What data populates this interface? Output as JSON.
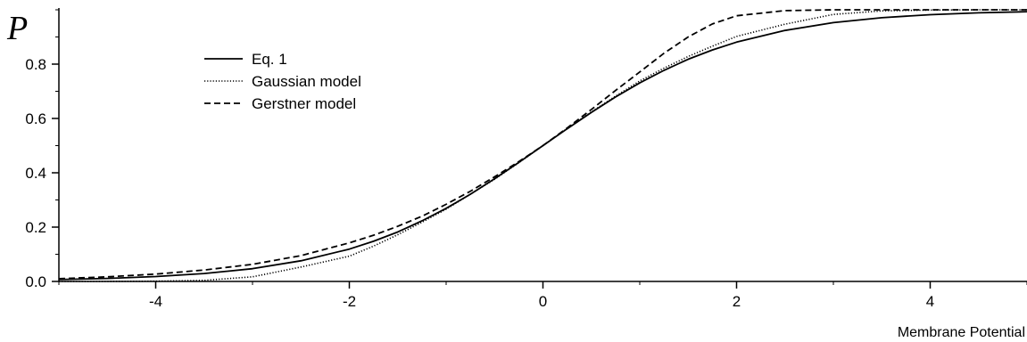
{
  "chart_data": {
    "type": "line",
    "title": "",
    "xlabel": "Membrane Potential",
    "ylabel": "P",
    "xlim": [
      -5,
      5
    ],
    "ylim": [
      0,
      1
    ],
    "xticks": [
      -4,
      -2,
      0,
      2,
      4
    ],
    "xtick_labels": [
      "-4",
      "-2",
      "0",
      "2",
      "4"
    ],
    "yticks": [
      0,
      0.2,
      0.4,
      0.6,
      0.8
    ],
    "ytick_labels": [
      "0.0",
      "0.2",
      "0.4",
      "0.6",
      "0.8"
    ],
    "grid": false,
    "legend_position": "top-left",
    "x": [
      -5,
      -4.5,
      -4,
      -3.5,
      -3,
      -2.5,
      -2,
      -1.75,
      -1.5,
      -1.25,
      -1,
      -0.75,
      -0.5,
      -0.25,
      0,
      0.25,
      0.5,
      0.75,
      1,
      1.25,
      1.5,
      1.75,
      2,
      2.5,
      3,
      3.5,
      4,
      4.5,
      5
    ],
    "series": [
      {
        "name": "Eq. 1",
        "style": "solid",
        "values": [
          0.007,
          0.011,
          0.018,
          0.029,
          0.047,
          0.076,
          0.119,
          0.148,
          0.182,
          0.223,
          0.269,
          0.321,
          0.378,
          0.438,
          0.5,
          0.562,
          0.622,
          0.679,
          0.731,
          0.777,
          0.818,
          0.852,
          0.881,
          0.924,
          0.953,
          0.971,
          0.982,
          0.989,
          0.993
        ]
      },
      {
        "name": "Gaussian model",
        "style": "dotted",
        "values": [
          0.0,
          0.0,
          0.001,
          0.004,
          0.017,
          0.053,
          0.093,
          0.13,
          0.172,
          0.218,
          0.266,
          0.321,
          0.376,
          0.437,
          0.5,
          0.563,
          0.624,
          0.682,
          0.738,
          0.785,
          0.828,
          0.866,
          0.902,
          0.947,
          0.983,
          0.996,
          0.999,
          1.0,
          1.0
        ]
      },
      {
        "name": "Gerstner model",
        "style": "dashed",
        "values": [
          0.01,
          0.017,
          0.027,
          0.042,
          0.063,
          0.095,
          0.142,
          0.17,
          0.203,
          0.24,
          0.284,
          0.332,
          0.385,
          0.441,
          0.5,
          0.565,
          0.633,
          0.703,
          0.771,
          0.84,
          0.9,
          0.948,
          0.978,
          0.997,
          1.0,
          1.0,
          1.0,
          1.0,
          1.0
        ]
      }
    ]
  }
}
